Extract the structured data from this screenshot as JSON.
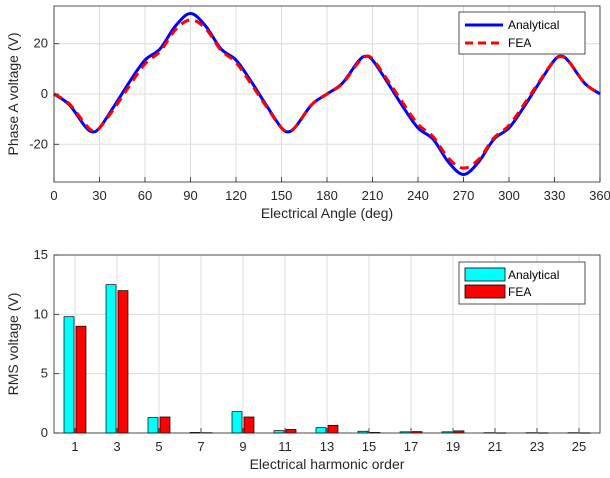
{
  "chart_data": [
    {
      "type": "line",
      "xlabel": "Electrical Angle (deg)",
      "ylabel": "Phase A voltage (V)",
      "xlim": [
        0,
        360
      ],
      "ylim": [
        -35,
        35
      ],
      "xticks": [
        0,
        30,
        60,
        90,
        120,
        150,
        180,
        210,
        240,
        270,
        300,
        330,
        360
      ],
      "yticks": [
        -20,
        0,
        20
      ],
      "grid": true,
      "legend_position": "top-right",
      "x": [
        0,
        10,
        20,
        25,
        30,
        40,
        50,
        60,
        70,
        80,
        90,
        100,
        110,
        120,
        130,
        140,
        150,
        155,
        160,
        170,
        180,
        190,
        200,
        205,
        210,
        220,
        230,
        240,
        250,
        260,
        270,
        280,
        290,
        300,
        310,
        320,
        330,
        335,
        340,
        350,
        360
      ],
      "series": [
        {
          "name": "Analytical",
          "color": "#0000ff",
          "style": "solid",
          "values": [
            0,
            -4.2,
            -12.5,
            -15,
            -13.5,
            -4.5,
            5,
            13.5,
            18,
            27,
            32,
            27,
            18,
            13.5,
            5,
            -4.5,
            -13.5,
            -15,
            -12.5,
            -4.2,
            0,
            4.2,
            12.5,
            15,
            13.5,
            4.5,
            -5,
            -13.5,
            -18,
            -27,
            -32,
            -27,
            -18,
            -13.5,
            -5,
            4.5,
            13.5,
            15,
            12.5,
            4.2,
            0
          ]
        },
        {
          "name": "FEA",
          "color": "#ff0000",
          "style": "dashed",
          "values": [
            0,
            -3.8,
            -11.5,
            -14.5,
            -13.5,
            -5.5,
            3.5,
            12,
            17,
            25.5,
            29.5,
            26,
            17.5,
            12.5,
            4,
            -5,
            -13.5,
            -14.8,
            -12.5,
            -4.2,
            0,
            4,
            12,
            14.8,
            14,
            5.5,
            -3.5,
            -12,
            -17,
            -25.5,
            -29.5,
            -26,
            -17.5,
            -12.5,
            -4,
            5,
            13.5,
            14.8,
            12.5,
            4.2,
            0
          ]
        }
      ]
    },
    {
      "type": "bar",
      "xlabel": "Electrical harmonic order",
      "ylabel": "RMS voltage (V)",
      "ylim": [
        0,
        15
      ],
      "yticks": [
        0,
        5,
        10,
        15
      ],
      "grid": true,
      "legend_position": "top-right",
      "categories": [
        "1",
        "3",
        "5",
        "7",
        "9",
        "11",
        "13",
        "15",
        "17",
        "19",
        "21",
        "23",
        "25"
      ],
      "series": [
        {
          "name": "Analytical",
          "color": "#00ffff",
          "values": [
            9.8,
            12.5,
            1.3,
            0.05,
            1.8,
            0.2,
            0.45,
            0.15,
            0.1,
            0.1,
            0.03,
            0.03,
            0.03
          ]
        },
        {
          "name": "FEA",
          "color": "#ff0000",
          "values": [
            9.0,
            12.0,
            1.35,
            0.03,
            1.35,
            0.3,
            0.65,
            0.05,
            0.12,
            0.18,
            0.02,
            0.02,
            0.02
          ]
        }
      ]
    }
  ]
}
